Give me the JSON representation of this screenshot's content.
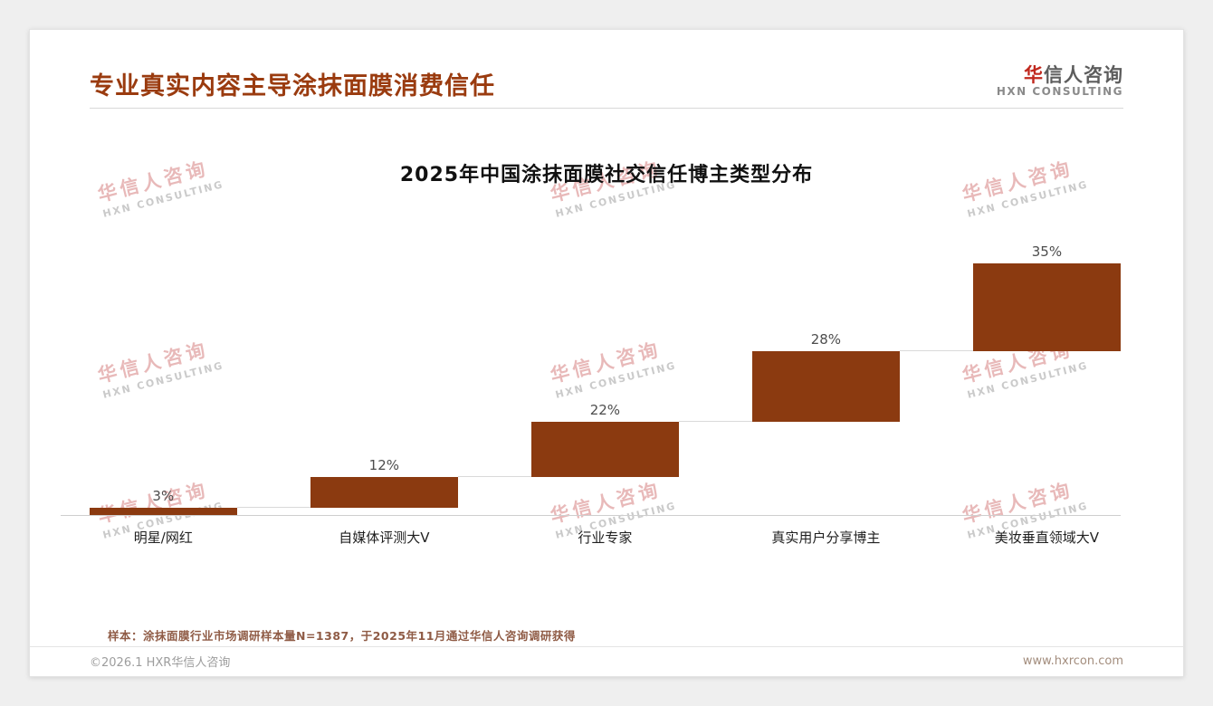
{
  "page": {
    "title": "专业真实内容主导涂抹面膜消费信任",
    "logo": {
      "zh_first": "华",
      "zh_rest": "信人咨询",
      "en": "HXN CONSULTING"
    },
    "watermark": {
      "zh": "华信人咨询",
      "en": "HXN CONSULTING"
    },
    "footnote": "样本：涂抹面膜行业市场调研样本量N=1387，于2025年11月通过华信人咨询调研获得",
    "footer_left": "©2026.1 HXR华信人咨询",
    "footer_right": "www.hxrcon.com"
  },
  "chart_data": {
    "type": "bar",
    "subtype": "ascending-waterfall",
    "title": "2025年中国涂抹面膜社交信任博主类型分布",
    "categories": [
      "明星/网红",
      "自媒体评测大V",
      "行业专家",
      "真实用户分享博主",
      "美妆垂直领域大V"
    ],
    "values": [
      3,
      12,
      22,
      28,
      35
    ],
    "labels": [
      "3%",
      "12%",
      "22%",
      "28%",
      "35%"
    ],
    "cumulative": [
      3,
      15,
      37,
      65,
      100
    ],
    "ylim": [
      0,
      100
    ],
    "bar_color": "#8b3a10",
    "connector_color": "#d9d9d9",
    "grid": false,
    "legend": false
  }
}
